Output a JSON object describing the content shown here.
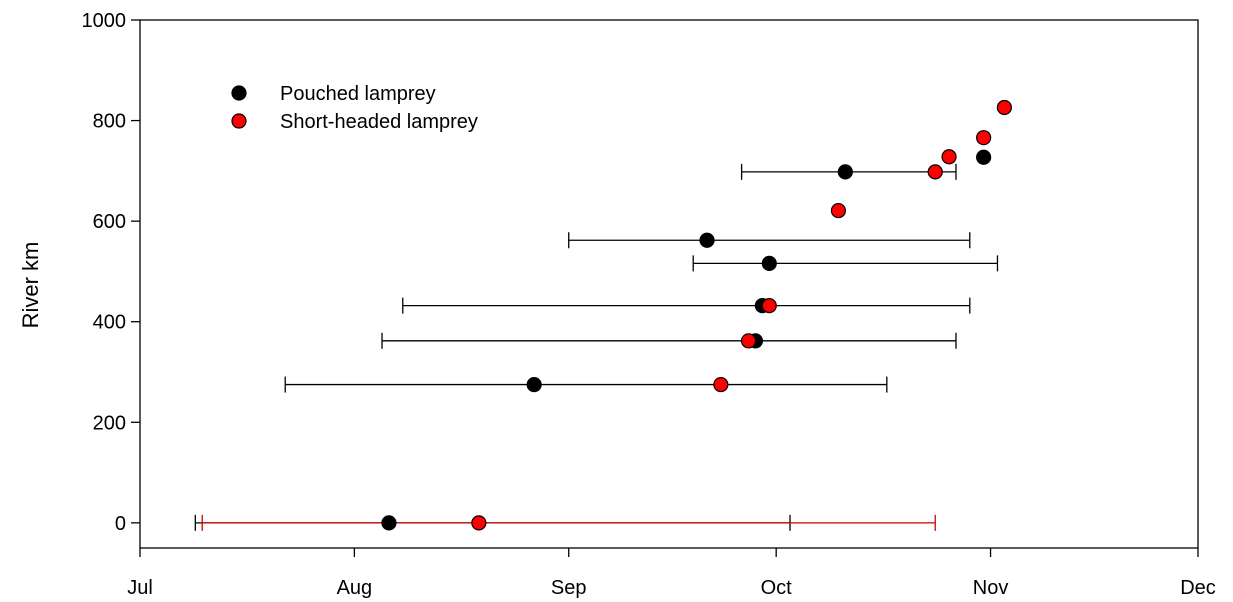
{
  "chart_data": {
    "type": "scatter",
    "title": "",
    "xlabel": "",
    "ylabel": "River km",
    "x_axis": {
      "type": "date",
      "range": [
        "2000-07-01",
        "2000-12-01"
      ],
      "ticks": [
        {
          "label": "Jul",
          "date": "2000-07-01"
        },
        {
          "label": "Aug",
          "date": "2000-08-01"
        },
        {
          "label": "Sep",
          "date": "2000-09-01"
        },
        {
          "label": "Oct",
          "date": "2000-10-01"
        },
        {
          "label": "Nov",
          "date": "2000-11-01"
        },
        {
          "label": "Dec",
          "date": "2000-12-01"
        }
      ]
    },
    "y_axis": {
      "range": [
        -50,
        1000
      ],
      "ticks": [
        0,
        200,
        400,
        600,
        800,
        1000
      ]
    },
    "grid": false,
    "legend": {
      "position": "top-left"
    },
    "series": [
      {
        "name": "Pouched lamprey",
        "color": "#000000",
        "error_bar_color": "#000000",
        "points": [
          {
            "x": "2000-08-06",
            "y": 0,
            "xerr": [
              "2000-07-09",
              "2000-10-03"
            ]
          },
          {
            "x": "2000-08-27",
            "y": 275,
            "xerr": [
              "2000-07-22",
              "2000-10-17"
            ]
          },
          {
            "x": "2000-09-28",
            "y": 362,
            "xerr": [
              "2000-08-05",
              "2000-10-27"
            ]
          },
          {
            "x": "2000-09-29",
            "y": 432,
            "xerr": [
              "2000-08-08",
              "2000-10-29"
            ]
          },
          {
            "x": "2000-09-30",
            "y": 516,
            "xerr": [
              "2000-09-19",
              "2000-11-02"
            ]
          },
          {
            "x": "2000-09-21",
            "y": 562,
            "xerr": [
              "2000-09-01",
              "2000-10-29"
            ]
          },
          {
            "x": "2000-10-11",
            "y": 698,
            "xerr": [
              "2000-09-26",
              "2000-10-27"
            ]
          },
          {
            "x": "2000-10-31",
            "y": 727
          }
        ]
      },
      {
        "name": "Short-headed lamprey",
        "color": "#ff0000",
        "error_bar_color": "#cc0000",
        "points": [
          {
            "x": "2000-08-19",
            "y": 0,
            "xerr": [
              "2000-07-10",
              "2000-10-24"
            ]
          },
          {
            "x": "2000-09-23",
            "y": 275
          },
          {
            "x": "2000-09-27",
            "y": 362
          },
          {
            "x": "2000-09-30",
            "y": 432
          },
          {
            "x": "2000-10-10",
            "y": 621
          },
          {
            "x": "2000-10-24",
            "y": 698
          },
          {
            "x": "2000-10-26",
            "y": 728
          },
          {
            "x": "2000-10-31",
            "y": 766
          },
          {
            "x": "2000-11-03",
            "y": 826
          }
        ]
      }
    ]
  }
}
